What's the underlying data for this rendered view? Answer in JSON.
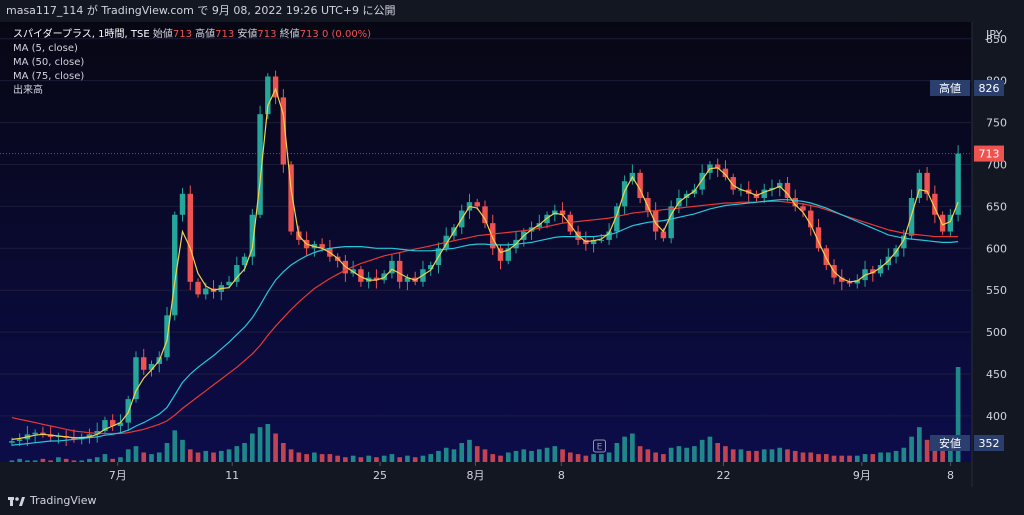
{
  "header": {
    "publish_line": "masa117_114 が TradingView.com で 9月 08, 2022 19:26 UTC+9 に公開"
  },
  "legend": {
    "symbol": "スパイダープラス, 1時間, TSE",
    "open_label": "始値",
    "open_value": "713",
    "high_label": "高値",
    "high_value": "713",
    "low_label": "安値",
    "low_value": "713",
    "close_label": "終値",
    "close_value": "713",
    "change": "0 (0.00%)",
    "indicators": [
      "MA (5, close)",
      "MA (50, close)",
      "MA (75, close)",
      "出来高"
    ]
  },
  "footer": {
    "brand": "TradingView"
  },
  "colors": {
    "bg_top": "#070714",
    "bg_bottom": "#0c0c4a",
    "up": "#26a69a",
    "down": "#ef5350",
    "ma5": "#f0d34a",
    "ma50": "#26c6da",
    "ma75": "#e53935",
    "text": "#d1d4dc"
  },
  "chart_data": {
    "type": "candlestick",
    "currency_label": "JPY",
    "y_ticks": [
      850,
      800,
      750,
      700,
      650,
      600,
      550,
      500,
      450,
      400
    ],
    "ylim": [
      345,
      870
    ],
    "x_ticks": [
      "7月",
      "11",
      "25",
      "8月",
      "8",
      "22",
      "9月",
      "8"
    ],
    "high_tag": {
      "label": "高値",
      "value": "826"
    },
    "low_tag": {
      "label": "安値",
      "value": "352"
    },
    "last_price": {
      "value": "713"
    },
    "event_marker": "E",
    "close_series": [
      370,
      372,
      378,
      380,
      378,
      375,
      376,
      374,
      372,
      375,
      378,
      382,
      395,
      388,
      392,
      420,
      470,
      455,
      462,
      470,
      520,
      640,
      665,
      560,
      545,
      552,
      548,
      556,
      560,
      580,
      590,
      640,
      760,
      805,
      780,
      700,
      620,
      610,
      600,
      605,
      600,
      590,
      585,
      570,
      575,
      560,
      565,
      562,
      570,
      585,
      560,
      565,
      560,
      575,
      580,
      600,
      615,
      625,
      645,
      655,
      650,
      630,
      600,
      585,
      600,
      610,
      620,
      625,
      630,
      640,
      645,
      640,
      620,
      610,
      605,
      610,
      610,
      620,
      650,
      680,
      690,
      660,
      645,
      620,
      612,
      650,
      660,
      665,
      670,
      690,
      700,
      695,
      685,
      670,
      670,
      665,
      660,
      670,
      672,
      678,
      660,
      650,
      645,
      625,
      600,
      580,
      565,
      560,
      558,
      562,
      575,
      570,
      580,
      590,
      600,
      615,
      660,
      690,
      665,
      640,
      620,
      640,
      713
    ],
    "ma5_series": [
      372,
      373,
      375,
      377,
      378,
      377,
      376,
      375,
      374,
      374,
      375,
      378,
      384,
      388,
      392,
      404,
      430,
      445,
      455,
      466,
      490,
      560,
      620,
      600,
      570,
      555,
      550,
      552,
      553,
      565,
      575,
      600,
      680,
      770,
      790,
      760,
      670,
      615,
      605,
      602,
      600,
      595,
      588,
      578,
      572,
      566,
      562,
      562,
      565,
      575,
      570,
      565,
      562,
      568,
      574,
      590,
      605,
      620,
      635,
      650,
      648,
      635,
      612,
      595,
      598,
      605,
      615,
      622,
      628,
      636,
      642,
      640,
      628,
      615,
      608,
      609,
      611,
      618,
      640,
      668,
      685,
      670,
      650,
      630,
      620,
      640,
      655,
      662,
      668,
      682,
      695,
      696,
      688,
      675,
      670,
      667,
      663,
      667,
      670,
      674,
      665,
      652,
      643,
      628,
      608,
      588,
      572,
      564,
      560,
      561,
      568,
      571,
      577,
      585,
      596,
      610,
      640,
      670,
      668,
      648,
      628,
      632,
      655
    ],
    "ma50_series": [
      365,
      366,
      367,
      368,
      369,
      370,
      370,
      371,
      372,
      373,
      374,
      375,
      377,
      378,
      380,
      383,
      388,
      392,
      397,
      402,
      410,
      425,
      440,
      450,
      458,
      465,
      472,
      480,
      488,
      497,
      506,
      517,
      532,
      548,
      562,
      572,
      580,
      586,
      591,
      595,
      598,
      600,
      601,
      602,
      602,
      602,
      601,
      600,
      600,
      600,
      599,
      598,
      597,
      597,
      597,
      598,
      599,
      600,
      602,
      604,
      605,
      605,
      604,
      604,
      604,
      605,
      606,
      607,
      609,
      611,
      613,
      614,
      614,
      614,
      614,
      614,
      615,
      616,
      619,
      623,
      627,
      629,
      631,
      632,
      633,
      635,
      637,
      639,
      641,
      644,
      647,
      649,
      651,
      652,
      653,
      654,
      655,
      656,
      657,
      658,
      658,
      657,
      656,
      654,
      651,
      648,
      644,
      640,
      636,
      632,
      628,
      624,
      620,
      616,
      614,
      612,
      611,
      610,
      609,
      608,
      607,
      607,
      608
    ],
    "ma75_series": [
      398,
      396,
      394,
      392,
      390,
      388,
      386,
      384,
      382,
      381,
      380,
      379,
      379,
      379,
      379,
      380,
      382,
      384,
      387,
      390,
      394,
      401,
      409,
      416,
      423,
      430,
      437,
      444,
      451,
      458,
      466,
      474,
      484,
      496,
      507,
      517,
      527,
      536,
      544,
      552,
      558,
      564,
      569,
      574,
      578,
      582,
      585,
      588,
      591,
      593,
      595,
      597,
      599,
      601,
      603,
      605,
      607,
      609,
      611,
      613,
      615,
      616,
      617,
      618,
      619,
      620,
      621,
      622,
      624,
      626,
      628,
      630,
      631,
      632,
      633,
      634,
      635,
      636,
      638,
      640,
      642,
      643,
      644,
      645,
      646,
      647,
      648,
      649,
      650,
      651,
      652,
      653,
      654,
      654,
      655,
      655,
      655,
      656,
      656,
      656,
      655,
      654,
      653,
      651,
      649,
      646,
      643,
      640,
      637,
      634,
      631,
      628,
      625,
      622,
      620,
      618,
      617,
      616,
      615,
      614,
      614,
      614,
      614
    ],
    "volume_series": [
      1,
      2,
      1,
      1,
      2,
      1,
      3,
      2,
      1,
      1,
      2,
      3,
      5,
      2,
      3,
      8,
      10,
      6,
      5,
      6,
      12,
      20,
      14,
      8,
      6,
      7,
      6,
      7,
      8,
      10,
      12,
      18,
      22,
      24,
      18,
      12,
      8,
      6,
      5,
      6,
      5,
      5,
      4,
      3,
      4,
      3,
      4,
      3,
      4,
      5,
      3,
      4,
      3,
      4,
      5,
      7,
      9,
      8,
      12,
      14,
      10,
      8,
      5,
      4,
      6,
      7,
      8,
      7,
      8,
      9,
      10,
      8,
      6,
      5,
      4,
      5,
      5,
      6,
      12,
      16,
      18,
      10,
      8,
      6,
      5,
      9,
      10,
      9,
      10,
      14,
      16,
      12,
      10,
      8,
      8,
      7,
      7,
      8,
      8,
      9,
      8,
      7,
      6,
      6,
      5,
      5,
      4,
      4,
      4,
      4,
      5,
      5,
      6,
      6,
      7,
      9,
      16,
      22,
      14,
      10,
      8,
      9,
      60
    ]
  }
}
